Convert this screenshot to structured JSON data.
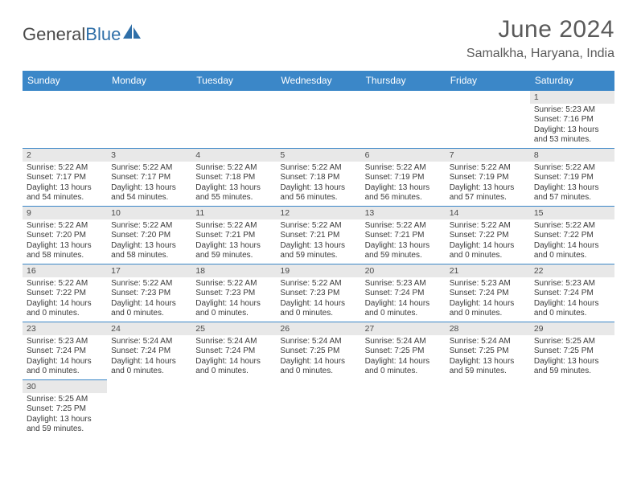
{
  "logo": {
    "part1": "General",
    "part2": "Blue"
  },
  "title": "June 2024",
  "location": "Samalkha, Haryana, India",
  "colors": {
    "header_bg": "#3b87c8",
    "header_text": "#ffffff",
    "daynum_bg": "#e8e8e8",
    "text": "#4a4a4a",
    "logo_blue": "#2f6fa8"
  },
  "weekdays": [
    "Sunday",
    "Monday",
    "Tuesday",
    "Wednesday",
    "Thursday",
    "Friday",
    "Saturday"
  ],
  "weeks": [
    [
      null,
      null,
      null,
      null,
      null,
      null,
      {
        "n": "1",
        "sr": "5:23 AM",
        "ss": "7:16 PM",
        "dl": "13 hours and 53 minutes."
      }
    ],
    [
      {
        "n": "2",
        "sr": "5:22 AM",
        "ss": "7:17 PM",
        "dl": "13 hours and 54 minutes."
      },
      {
        "n": "3",
        "sr": "5:22 AM",
        "ss": "7:17 PM",
        "dl": "13 hours and 54 minutes."
      },
      {
        "n": "4",
        "sr": "5:22 AM",
        "ss": "7:18 PM",
        "dl": "13 hours and 55 minutes."
      },
      {
        "n": "5",
        "sr": "5:22 AM",
        "ss": "7:18 PM",
        "dl": "13 hours and 56 minutes."
      },
      {
        "n": "6",
        "sr": "5:22 AM",
        "ss": "7:19 PM",
        "dl": "13 hours and 56 minutes."
      },
      {
        "n": "7",
        "sr": "5:22 AM",
        "ss": "7:19 PM",
        "dl": "13 hours and 57 minutes."
      },
      {
        "n": "8",
        "sr": "5:22 AM",
        "ss": "7:19 PM",
        "dl": "13 hours and 57 minutes."
      }
    ],
    [
      {
        "n": "9",
        "sr": "5:22 AM",
        "ss": "7:20 PM",
        "dl": "13 hours and 58 minutes."
      },
      {
        "n": "10",
        "sr": "5:22 AM",
        "ss": "7:20 PM",
        "dl": "13 hours and 58 minutes."
      },
      {
        "n": "11",
        "sr": "5:22 AM",
        "ss": "7:21 PM",
        "dl": "13 hours and 59 minutes."
      },
      {
        "n": "12",
        "sr": "5:22 AM",
        "ss": "7:21 PM",
        "dl": "13 hours and 59 minutes."
      },
      {
        "n": "13",
        "sr": "5:22 AM",
        "ss": "7:21 PM",
        "dl": "13 hours and 59 minutes."
      },
      {
        "n": "14",
        "sr": "5:22 AM",
        "ss": "7:22 PM",
        "dl": "14 hours and 0 minutes."
      },
      {
        "n": "15",
        "sr": "5:22 AM",
        "ss": "7:22 PM",
        "dl": "14 hours and 0 minutes."
      }
    ],
    [
      {
        "n": "16",
        "sr": "5:22 AM",
        "ss": "7:22 PM",
        "dl": "14 hours and 0 minutes."
      },
      {
        "n": "17",
        "sr": "5:22 AM",
        "ss": "7:23 PM",
        "dl": "14 hours and 0 minutes."
      },
      {
        "n": "18",
        "sr": "5:22 AM",
        "ss": "7:23 PM",
        "dl": "14 hours and 0 minutes."
      },
      {
        "n": "19",
        "sr": "5:22 AM",
        "ss": "7:23 PM",
        "dl": "14 hours and 0 minutes."
      },
      {
        "n": "20",
        "sr": "5:23 AM",
        "ss": "7:24 PM",
        "dl": "14 hours and 0 minutes."
      },
      {
        "n": "21",
        "sr": "5:23 AM",
        "ss": "7:24 PM",
        "dl": "14 hours and 0 minutes."
      },
      {
        "n": "22",
        "sr": "5:23 AM",
        "ss": "7:24 PM",
        "dl": "14 hours and 0 minutes."
      }
    ],
    [
      {
        "n": "23",
        "sr": "5:23 AM",
        "ss": "7:24 PM",
        "dl": "14 hours and 0 minutes."
      },
      {
        "n": "24",
        "sr": "5:24 AM",
        "ss": "7:24 PM",
        "dl": "14 hours and 0 minutes."
      },
      {
        "n": "25",
        "sr": "5:24 AM",
        "ss": "7:24 PM",
        "dl": "14 hours and 0 minutes."
      },
      {
        "n": "26",
        "sr": "5:24 AM",
        "ss": "7:25 PM",
        "dl": "14 hours and 0 minutes."
      },
      {
        "n": "27",
        "sr": "5:24 AM",
        "ss": "7:25 PM",
        "dl": "14 hours and 0 minutes."
      },
      {
        "n": "28",
        "sr": "5:24 AM",
        "ss": "7:25 PM",
        "dl": "13 hours and 59 minutes."
      },
      {
        "n": "29",
        "sr": "5:25 AM",
        "ss": "7:25 PM",
        "dl": "13 hours and 59 minutes."
      }
    ],
    [
      {
        "n": "30",
        "sr": "5:25 AM",
        "ss": "7:25 PM",
        "dl": "13 hours and 59 minutes."
      },
      null,
      null,
      null,
      null,
      null,
      null
    ]
  ],
  "labels": {
    "sunrise": "Sunrise:",
    "sunset": "Sunset:",
    "daylight": "Daylight:"
  }
}
